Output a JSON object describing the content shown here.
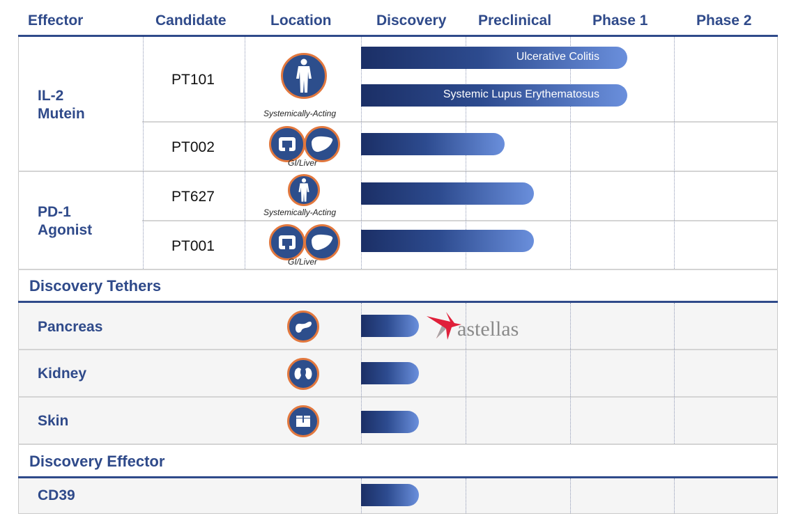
{
  "headers": {
    "effector": "Effector",
    "candidate": "Candidate",
    "location": "Location",
    "discovery": "Discovery",
    "preclinical": "Preclinical",
    "phase1": "Phase 1",
    "phase2": "Phase 2"
  },
  "groups": {
    "il2": "IL-2\nMutein",
    "pd1": "PD-1\nAgonist"
  },
  "sections": {
    "tethers": "Discovery Tethers",
    "effector": "Discovery Effector"
  },
  "locations": {
    "systemic": "Systemically-Acting",
    "gi_liver": "GI/Liver"
  },
  "rows": [
    {
      "candidate": "PT101",
      "location": "Systemically-Acting",
      "icon": "human-body-icon",
      "indication": "Ulcerative Colitis",
      "progress": 2.55
    },
    {
      "candidate": "",
      "location": "Systemically-Acting",
      "icon": "human-body-icon",
      "indication": "Systemic Lupus Erythematosus",
      "progress": 2.55
    },
    {
      "candidate": "PT002",
      "location": "GI/Liver",
      "icon": "intestine-liver-icon",
      "indication": "",
      "progress": 1.37
    },
    {
      "candidate": "PT627",
      "location": "Systemically-Acting",
      "icon": "human-body-icon",
      "indication": "",
      "progress": 1.65
    },
    {
      "candidate": "PT001",
      "location": "GI/Liver",
      "icon": "intestine-liver-icon",
      "indication": "",
      "progress": 1.65
    },
    {
      "candidate": "Pancreas",
      "location": "",
      "icon": "pancreas-icon",
      "indication": "",
      "progress": 0.55
    },
    {
      "candidate": "Kidney",
      "location": "",
      "icon": "kidney-icon",
      "indication": "",
      "progress": 0.55
    },
    {
      "candidate": "Skin",
      "location": "",
      "icon": "skin-icon",
      "indication": "",
      "progress": 0.55
    },
    {
      "candidate": "CD39",
      "location": "",
      "icon": "",
      "indication": "",
      "progress": 0.55
    }
  ],
  "partner": {
    "name": "astellas",
    "icon": "astellas-logo-icon"
  },
  "colors": {
    "header_text": "#2f4a8a",
    "bar_dark": "#1b2f66",
    "bar_light": "#6a8fdc",
    "icon_fill": "#2d4e8c",
    "icon_ring": "#e2783e",
    "section_rule": "#2f4a8a"
  },
  "chart_data": {
    "type": "bar",
    "categories": [
      "PT101 Ulcerative Colitis",
      "PT101 Systemic Lupus Erythematosus",
      "PT002",
      "PT627",
      "PT001",
      "Pancreas",
      "Kidney",
      "Skin",
      "CD39"
    ],
    "values": [
      2.55,
      2.55,
      1.37,
      1.65,
      1.65,
      0.55,
      0.55,
      0.55,
      0.55
    ],
    "stages": [
      "Discovery",
      "Preclinical",
      "Phase 1",
      "Phase 2"
    ],
    "xlim": [
      0,
      4
    ],
    "title": "",
    "xlabel": "",
    "ylabel": ""
  }
}
